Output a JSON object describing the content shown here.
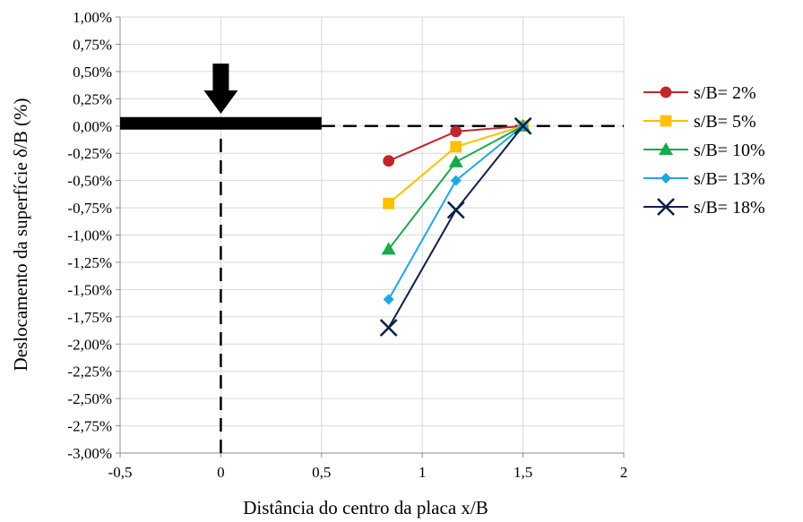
{
  "chart_data": {
    "type": "line",
    "title": "",
    "xlabel": "Distância do centro da placa x/B",
    "ylabel": "Deslocamento da superfície δ/B (%)",
    "xlim": [
      -0.5,
      2
    ],
    "ylim": [
      -3.0,
      1.0
    ],
    "x_ticks": [
      -0.5,
      0,
      0.5,
      1,
      1.5,
      2
    ],
    "x_tick_labels": [
      "-0,5",
      "0",
      "0,5",
      "1",
      "1,5",
      "2"
    ],
    "y_ticks": [
      1.0,
      0.75,
      0.5,
      0.25,
      0.0,
      -0.25,
      -0.5,
      -0.75,
      -1.0,
      -1.25,
      -1.5,
      -1.75,
      -2.0,
      -2.25,
      -2.5,
      -2.75,
      -3.0
    ],
    "y_tick_labels": [
      "1,00%",
      "0,75%",
      "0,50%",
      "0,25%",
      "0,00%",
      "-0,25%",
      "-0,50%",
      "-0,75%",
      "-1,00%",
      "-1,25%",
      "-1,50%",
      "-1,75%",
      "-2,00%",
      "-2,25%",
      "-2,50%",
      "-2,75%",
      "-3,00%"
    ],
    "grid": true,
    "legend_position": "right",
    "series": [
      {
        "name": "s/B= 2%",
        "color": "#C0272D",
        "marker": "circle",
        "x": [
          0.833,
          1.167,
          1.5
        ],
        "y": [
          -0.32,
          -0.05,
          0.0
        ]
      },
      {
        "name": "s/B= 5%",
        "color": "#FFC000",
        "marker": "square",
        "x": [
          0.833,
          1.167,
          1.5
        ],
        "y": [
          -0.71,
          -0.19,
          0.0
        ]
      },
      {
        "name": "s/B= 10%",
        "color": "#1AA84E",
        "marker": "triangle",
        "x": [
          0.833,
          1.167,
          1.5
        ],
        "y": [
          -1.13,
          -0.33,
          0.0
        ]
      },
      {
        "name": "s/B= 13%",
        "color": "#1EA7E1",
        "marker": "diamond",
        "x": [
          0.833,
          1.167,
          1.5
        ],
        "y": [
          -1.59,
          -0.5,
          0.0
        ]
      },
      {
        "name": "s/B= 18%",
        "color": "#0D1E4A",
        "marker": "x",
        "x": [
          0.833,
          1.167,
          1.5
        ],
        "y": [
          -1.85,
          -0.77,
          0.0
        ]
      }
    ],
    "annotations": {
      "plate": {
        "x_from": -0.5,
        "x_to": 0.5,
        "y": 0.0,
        "color": "#000000"
      },
      "load_arrow": {
        "x": 0,
        "color": "#000000"
      },
      "surface_line": {
        "x_from": 0.5,
        "x_to": 2,
        "y": 0.0,
        "style": "dashed"
      },
      "center_line": {
        "x": 0,
        "y_from": -3.0,
        "y_to": 0.0,
        "style": "dashed"
      }
    }
  }
}
